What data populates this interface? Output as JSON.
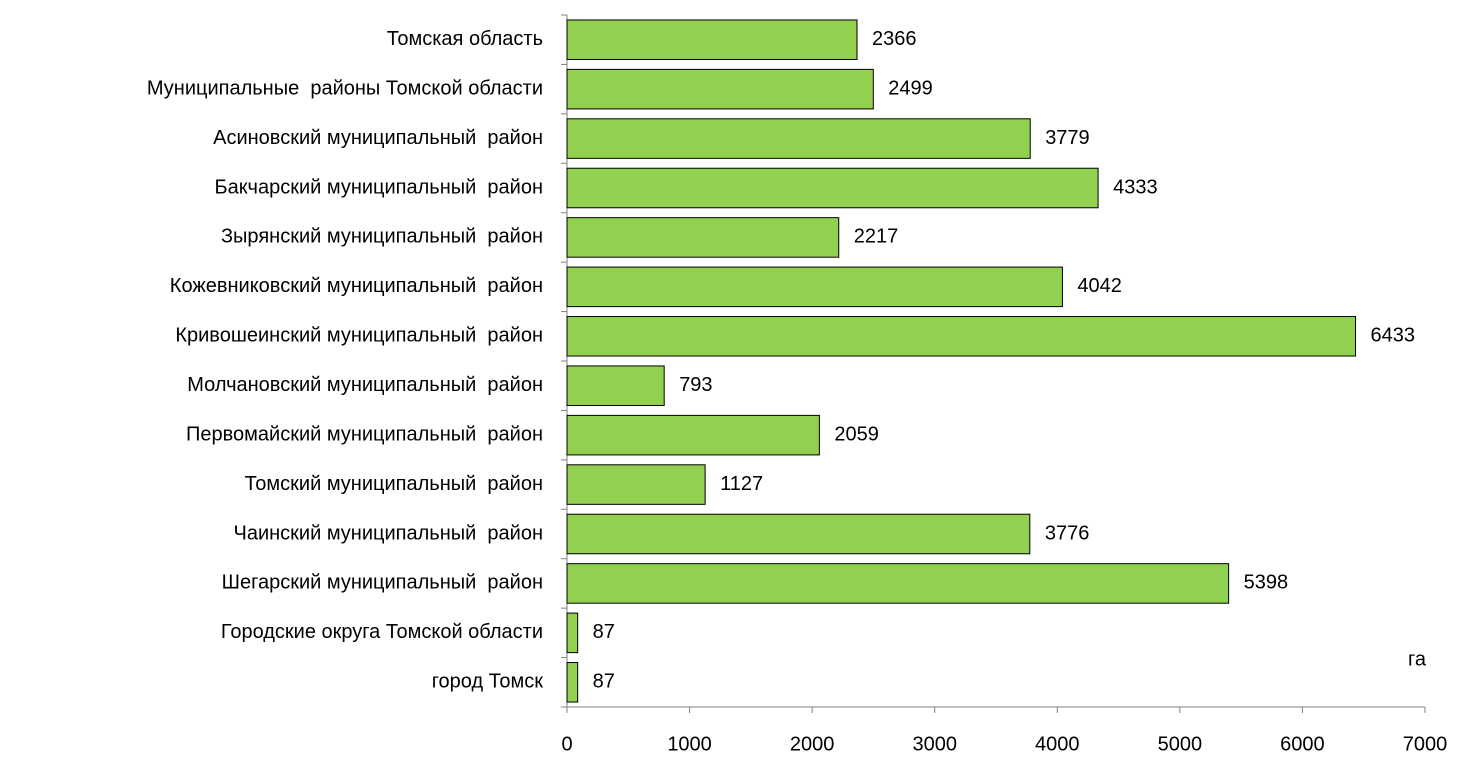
{
  "chart_data": {
    "type": "bar",
    "orientation": "horizontal",
    "categories": [
      "Томская область",
      "Муниципальные  районы Томской области",
      "Асиновский муниципальный  район",
      "Бакчарский муниципальный  район",
      "Зырянский муниципальный  район",
      "Кожевниковский муниципальный  район",
      "Кривошеинский муниципальный  район",
      "Молчановский муниципальный  район",
      "Первомайский муниципальный  район",
      "Томский муниципальный  район",
      "Чаинский муниципальный  район",
      "Шегарский муниципальный  район",
      "Городские округа Томской области",
      "город Томск"
    ],
    "values": [
      2366,
      2499,
      3779,
      4333,
      2217,
      4042,
      6433,
      793,
      2059,
      1127,
      3776,
      5398,
      87,
      87
    ],
    "color": "#92d050",
    "xlim": [
      0,
      7000
    ],
    "xticks": [
      0,
      1000,
      2000,
      3000,
      4000,
      5000,
      6000,
      7000
    ],
    "x_axis_label": "га",
    "grid": false
  }
}
